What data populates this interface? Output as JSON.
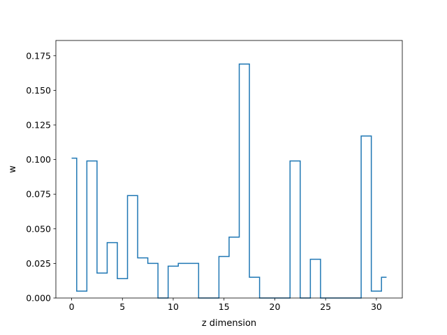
{
  "chart_data": {
    "type": "line",
    "drawstyle": "steps-mid",
    "xlabel": "z dimension",
    "ylabel": "w",
    "xlim": [
      -1.55,
      32.55
    ],
    "ylim": [
      0.0,
      0.186
    ],
    "xticks": [
      0,
      5,
      10,
      15,
      20,
      25,
      30
    ],
    "xtick_labels": [
      "0",
      "5",
      "10",
      "15",
      "20",
      "25",
      "30"
    ],
    "yticks": [
      0.0,
      0.025,
      0.05,
      0.075,
      0.1,
      0.125,
      0.15,
      0.175
    ],
    "ytick_labels": [
      "0.000",
      "0.025",
      "0.050",
      "0.075",
      "0.100",
      "0.125",
      "0.150",
      "0.175"
    ],
    "grid": false,
    "series_color": "#1f77b4",
    "x": [
      0,
      1,
      2,
      3,
      4,
      5,
      6,
      7,
      8,
      9,
      10,
      11,
      12,
      13,
      14,
      15,
      16,
      17,
      18,
      19,
      20,
      21,
      22,
      23,
      24,
      25,
      26,
      27,
      28,
      29,
      30,
      31
    ],
    "values": [
      0.101,
      0.005,
      0.099,
      0.018,
      0.04,
      0.014,
      0.074,
      0.029,
      0.025,
      0.0,
      0.023,
      0.025,
      0.025,
      0.0,
      0.0,
      0.03,
      0.044,
      0.169,
      0.015,
      0.0,
      0.0,
      0.0,
      0.099,
      0.0,
      0.028,
      0.0,
      0.0,
      0.0,
      0.0,
      0.117,
      0.005,
      0.015
    ]
  }
}
